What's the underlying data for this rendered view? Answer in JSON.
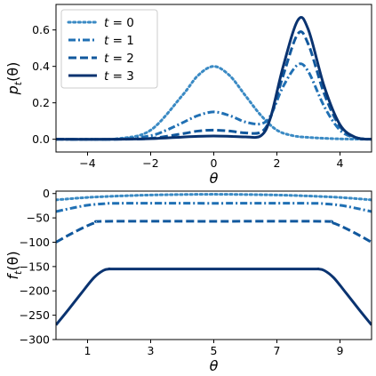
{
  "chart_data": [
    {
      "type": "line",
      "ylabel": "p_t(θ)",
      "ylabel_parts": {
        "main": "p",
        "sub": "t",
        "tail": "(θ)"
      },
      "xlabel": "θ",
      "xlim": [
        -5,
        5
      ],
      "ylim": [
        -0.07,
        0.74
      ],
      "xticks": [
        -4,
        -2,
        0,
        2,
        4
      ],
      "xtick_labels": [
        "−4",
        "−2",
        "0",
        "2",
        "4"
      ],
      "yticks": [
        0.0,
        0.2,
        0.4,
        0.6
      ],
      "ytick_labels": [
        "0.0",
        "0.2",
        "0.4",
        "0.6"
      ],
      "legend_loc": "upper-left",
      "series": [
        {
          "name": "t = 0",
          "legend_var": "t",
          "legend_val": "0",
          "style": "dotted",
          "color": "#3a8ac4",
          "x": [
            -5,
            -4,
            -3,
            -2,
            -1,
            -0.5,
            0,
            0.5,
            1,
            1.5,
            2,
            2.5,
            3,
            4,
            5
          ],
          "y": [
            0.0,
            0.0,
            0.004,
            0.05,
            0.24,
            0.35,
            0.4,
            0.35,
            0.24,
            0.13,
            0.05,
            0.02,
            0.01,
            0.002,
            0.0
          ]
        },
        {
          "name": "t = 1",
          "legend_var": "t",
          "legend_val": "1",
          "style": "dashdot",
          "color": "#2070b4",
          "x": [
            -5,
            -3,
            -2,
            -1.5,
            -1,
            -0.5,
            0,
            0.5,
            1,
            1.5,
            1.8,
            2.2,
            2.67,
            3.0,
            3.5,
            4,
            4.5,
            5
          ],
          "y": [
            0.0,
            0.001,
            0.02,
            0.05,
            0.09,
            0.13,
            0.15,
            0.13,
            0.095,
            0.085,
            0.13,
            0.29,
            0.41,
            0.37,
            0.18,
            0.05,
            0.008,
            0.0
          ]
        },
        {
          "name": "t = 2",
          "legend_var": "t",
          "legend_val": "2",
          "style": "dashed",
          "color": "#11589d",
          "x": [
            -5,
            -3,
            -2,
            -1,
            -0.5,
            0,
            0.5,
            1,
            1.5,
            1.8,
            2.2,
            2.67,
            3.0,
            3.5,
            4,
            4.5,
            5
          ],
          "y": [
            0.0,
            0.0,
            0.005,
            0.03,
            0.045,
            0.05,
            0.045,
            0.035,
            0.04,
            0.12,
            0.35,
            0.58,
            0.52,
            0.25,
            0.07,
            0.01,
            0.0
          ]
        },
        {
          "name": "t = 3",
          "legend_var": "t",
          "legend_val": "3",
          "style": "solid",
          "color": "#0a3370",
          "x": [
            -5,
            -3,
            -2,
            -1,
            -0.5,
            0,
            0.5,
            1,
            1.5,
            1.8,
            2.2,
            2.67,
            3.0,
            3.5,
            4,
            4.5,
            5
          ],
          "y": [
            0.0,
            0.0,
            0.003,
            0.012,
            0.016,
            0.018,
            0.016,
            0.013,
            0.02,
            0.12,
            0.4,
            0.655,
            0.6,
            0.29,
            0.08,
            0.01,
            0.0
          ]
        }
      ]
    },
    {
      "type": "line",
      "ylabel": "f_t(θ)",
      "ylabel_parts": {
        "main": "f",
        "sub": "t",
        "tail": "(θ)"
      },
      "xlabel": "θ",
      "xlim": [
        0,
        10
      ],
      "ylim": [
        -300,
        5
      ],
      "xticks": [
        1,
        3,
        5,
        7,
        9
      ],
      "xtick_labels": [
        "1",
        "3",
        "5",
        "7",
        "9"
      ],
      "yticks": [
        0,
        -50,
        -100,
        -150,
        -200,
        -250,
        -300
      ],
      "ytick_labels": [
        "0",
        "−50",
        "−100",
        "−150",
        "−200",
        "−250",
        "−300"
      ],
      "series": [
        {
          "name": "t = 0",
          "style": "dotted",
          "color": "#3a8ac4",
          "x": [
            0,
            1,
            2,
            3,
            4,
            5,
            6,
            7,
            8,
            9,
            10
          ],
          "y": [
            -13,
            -8,
            -5,
            -3,
            -2,
            -1.5,
            -2,
            -3,
            -5,
            -8,
            -13
          ]
        },
        {
          "name": "t = 1",
          "style": "dashdot",
          "color": "#2070b4",
          "x": [
            0,
            0.5,
            1,
            1.5,
            2,
            5,
            8,
            8.5,
            9,
            9.5,
            10
          ],
          "y": [
            -37,
            -30,
            -24,
            -21,
            -20,
            -20,
            -20,
            -21,
            -24,
            -30,
            -37
          ]
        },
        {
          "name": "t = 2",
          "style": "dashed",
          "color": "#11589d",
          "x": [
            0,
            0.5,
            1,
            1.3,
            1.6,
            5,
            8.4,
            8.7,
            9,
            9.5,
            10
          ],
          "y": [
            -100,
            -82,
            -66,
            -59,
            -57,
            -57,
            -57,
            -59,
            -66,
            -82,
            -100
          ]
        },
        {
          "name": "t = 3",
          "style": "solid",
          "color": "#0a3370",
          "x": [
            0,
            0.4,
            0.8,
            1.2,
            1.5,
            1.7,
            2,
            5,
            8,
            8.3,
            8.5,
            8.8,
            9.2,
            9.6,
            10
          ],
          "y": [
            -270,
            -238,
            -205,
            -173,
            -158,
            -155,
            -155,
            -155,
            -155,
            -155,
            -158,
            -173,
            -205,
            -238,
            -270
          ]
        }
      ]
    }
  ]
}
